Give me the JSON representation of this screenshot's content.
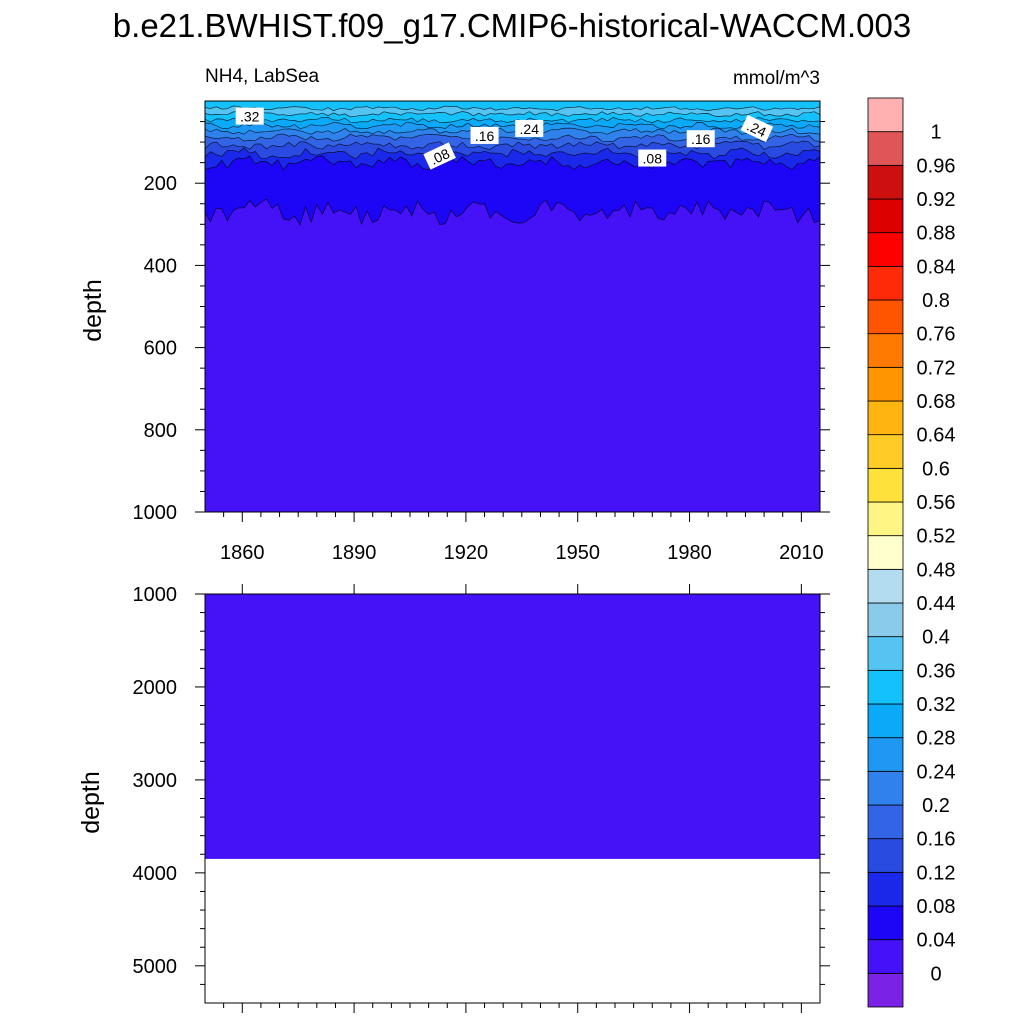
{
  "chart_data": [
    {
      "type": "contour",
      "title": "b.e21.BWHIST.f09_g17.CMIP6-historical-WACCM.003",
      "left_label": "NH4, LabSea",
      "right_label": "mmol/m^3",
      "ylabel": "depth",
      "xlim": [
        1850,
        2015
      ],
      "ylim": [
        1000,
        0
      ],
      "x_ticks": [
        1860,
        1890,
        1920,
        1950,
        1980,
        2010
      ],
      "y_ticks": [
        200,
        400,
        600,
        800,
        1000
      ],
      "contour_labels": [
        {
          "text": ".32",
          "x": 1862,
          "y": 38
        },
        {
          "text": ".16",
          "x": 1925,
          "y": 85
        },
        {
          "text": ".24",
          "x": 1937,
          "y": 68
        },
        {
          "text": ".08",
          "x": 1913,
          "y": 135
        },
        {
          "text": ".08",
          "x": 1970,
          "y": 140
        },
        {
          "text": ".16",
          "x": 1983,
          "y": 93
        },
        {
          "text": ".24",
          "x": 1998,
          "y": 68
        }
      ]
    },
    {
      "type": "contour",
      "ylabel": "depth",
      "xlim": [
        1850,
        2015
      ],
      "ylim": [
        5400,
        1000
      ],
      "y_ticks": [
        1000,
        2000,
        3000,
        4000,
        5000
      ],
      "ocean_floor": 3850,
      "fill_value": 0
    }
  ],
  "colorbar": {
    "levels": [
      "0",
      "0.04",
      "0.08",
      "0.12",
      "0.16",
      "0.2",
      "0.24",
      "0.28",
      "0.32",
      "0.36",
      "0.4",
      "0.44",
      "0.48",
      "0.52",
      "0.56",
      "0.6",
      "0.64",
      "0.68",
      "0.72",
      "0.76",
      "0.8",
      "0.84",
      "0.88",
      "0.92",
      "0.96",
      "1"
    ],
    "colors": [
      "#7a22e6",
      "#4512f7",
      "#1c06f5",
      "#1a28e9",
      "#2a4be0",
      "#3364e6",
      "#2f82ec",
      "#1f98f3",
      "#0aaaf8",
      "#15c1fa",
      "#55c4f2",
      "#8acbec",
      "#b4dcf1",
      "#ffffce",
      "#fff585",
      "#ffe13c",
      "#ffcc27",
      "#ffb40f",
      "#ff9500",
      "#ff7a00",
      "#ff5400",
      "#ff2a08",
      "#ff0000",
      "#dd0000",
      "#cc1010",
      "#e05555",
      "#ffb1b1"
    ]
  }
}
